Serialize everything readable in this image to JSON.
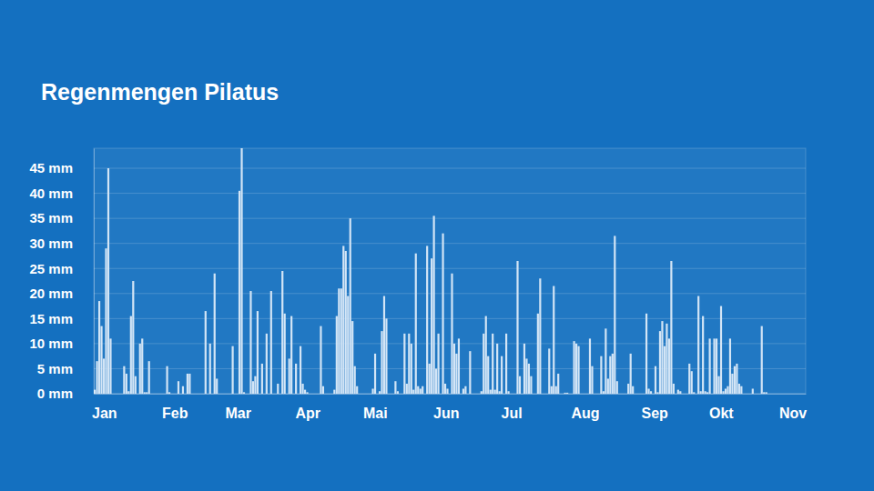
{
  "chart_data": {
    "type": "bar",
    "title": "Regenmengen Pilatus",
    "color": "#d3e5f6",
    "grid": true,
    "ylim": [
      0,
      49
    ],
    "yticks": [
      {
        "value": 0,
        "label": "0 mm"
      },
      {
        "value": 5,
        "label": "5 mm"
      },
      {
        "value": 10,
        "label": "10 mm"
      },
      {
        "value": 15,
        "label": "15 mm"
      },
      {
        "value": 20,
        "label": "20 mm"
      },
      {
        "value": 25,
        "label": "25 mm"
      },
      {
        "value": 30,
        "label": "30 mm"
      },
      {
        "value": 35,
        "label": "35 mm"
      },
      {
        "value": 40,
        "label": "40 mm"
      },
      {
        "value": 45,
        "label": "45 mm"
      }
    ],
    "categories": [
      "Jan",
      null,
      null,
      null,
      null,
      null,
      null,
      null,
      null,
      null,
      null,
      null,
      null,
      null,
      null,
      null,
      null,
      null,
      null,
      null,
      null,
      null,
      null,
      null,
      null,
      null,
      null,
      null,
      null,
      null,
      null,
      "Feb",
      null,
      null,
      null,
      null,
      null,
      null,
      null,
      null,
      null,
      null,
      null,
      null,
      null,
      null,
      null,
      null,
      null,
      null,
      null,
      null,
      null,
      null,
      null,
      null,
      null,
      null,
      null,
      "Mar",
      null,
      null,
      null,
      null,
      null,
      null,
      null,
      null,
      null,
      null,
      null,
      null,
      null,
      null,
      null,
      null,
      null,
      null,
      null,
      null,
      null,
      null,
      null,
      null,
      null,
      null,
      null,
      null,
      null,
      null,
      "Apr",
      null,
      null,
      null,
      null,
      null,
      null,
      null,
      null,
      null,
      null,
      null,
      null,
      null,
      null,
      null,
      null,
      null,
      null,
      null,
      null,
      null,
      null,
      null,
      null,
      null,
      null,
      null,
      null,
      null,
      "Mai",
      null,
      null,
      null,
      null,
      null,
      null,
      null,
      null,
      null,
      null,
      null,
      null,
      null,
      null,
      null,
      null,
      null,
      null,
      null,
      null,
      null,
      null,
      null,
      null,
      null,
      null,
      null,
      null,
      null,
      null,
      "Jun",
      null,
      null,
      null,
      null,
      null,
      null,
      null,
      null,
      null,
      null,
      null,
      null,
      null,
      null,
      null,
      null,
      null,
      null,
      null,
      null,
      null,
      null,
      null,
      null,
      null,
      null,
      null,
      null,
      null,
      "Jul",
      null,
      null,
      null,
      null,
      null,
      null,
      null,
      null,
      null,
      null,
      null,
      null,
      null,
      null,
      null,
      null,
      null,
      null,
      null,
      null,
      null,
      null,
      null,
      null,
      null,
      null,
      null,
      null,
      null,
      null,
      "Aug",
      null,
      null,
      null,
      null,
      null,
      null,
      null,
      null,
      null,
      null,
      null,
      null,
      null,
      null,
      null,
      null,
      null,
      null,
      null,
      null,
      null,
      null,
      null,
      null,
      null,
      null,
      null,
      null,
      null,
      null,
      "Sep",
      null,
      null,
      null,
      null,
      null,
      null,
      null,
      null,
      null,
      null,
      null,
      null,
      null,
      null,
      null,
      null,
      null,
      null,
      null,
      null,
      null,
      null,
      null,
      null,
      null,
      null,
      null,
      null,
      null,
      "Okt",
      null,
      null,
      null,
      null,
      null,
      null,
      null,
      null,
      null,
      null,
      null,
      null,
      null,
      null,
      null,
      null,
      null,
      null,
      null,
      null,
      null,
      null,
      null,
      null,
      null,
      null,
      null,
      null,
      null,
      null,
      "Nov",
      null,
      null,
      null,
      null,
      null,
      null,
      null,
      null,
      null,
      null
    ],
    "values": [
      0.8,
      6.5,
      18.5,
      13.5,
      7,
      29,
      45,
      11,
      0,
      0,
      0,
      0,
      0,
      5.5,
      4,
      0.5,
      15.5,
      22.5,
      3.5,
      0,
      10,
      11,
      0.3,
      0.3,
      6.5,
      0,
      0,
      0,
      0,
      0,
      0,
      0,
      5.5,
      0.3,
      0,
      0,
      0,
      2.5,
      0,
      1.5,
      0,
      4,
      4,
      0,
      0,
      0,
      0,
      0,
      0,
      16.5,
      0,
      10,
      0,
      24,
      3,
      0,
      0,
      0,
      0,
      0,
      0,
      9.5,
      0,
      0,
      40.5,
      49,
      0.3,
      0,
      0,
      20.5,
      2.5,
      3.5,
      16.5,
      0,
      6,
      0,
      12,
      0,
      20.5,
      0,
      0,
      2,
      0,
      24.5,
      16,
      0,
      7,
      15.5,
      0,
      6,
      0,
      9.5,
      2,
      0.8,
      0.3,
      0,
      0,
      0,
      0,
      0,
      13.5,
      1.5,
      0,
      0,
      0,
      0,
      0.8,
      15.5,
      21,
      21,
      29.5,
      28.5,
      19.5,
      35,
      14.5,
      5.5,
      1.5,
      0,
      0,
      0,
      0,
      0,
      0,
      1,
      8,
      0,
      0.5,
      12.5,
      19.5,
      15,
      0,
      0,
      0,
      2.5,
      0.5,
      0,
      0,
      12,
      2,
      12,
      10,
      0.8,
      28,
      1.5,
      1,
      1.5,
      0,
      29.5,
      6,
      27,
      35.5,
      5,
      12,
      0,
      32,
      2,
      1,
      0,
      24,
      10,
      8,
      11,
      0,
      1,
      1.5,
      0,
      8.5,
      0,
      0,
      0,
      0,
      0.5,
      12,
      15.5,
      7.5,
      0.8,
      12,
      0.8,
      10,
      0.5,
      7.5,
      0,
      12,
      0.5,
      0,
      0,
      0,
      26.5,
      3.5,
      0,
      10,
      7,
      6,
      3.5,
      0,
      0,
      16,
      23,
      0,
      0,
      0,
      9,
      1.5,
      21.5,
      1.5,
      4,
      0,
      0,
      0.2,
      0.2,
      0,
      0,
      10.5,
      10,
      9.5,
      0,
      0,
      0,
      0,
      11,
      5.5,
      0,
      0,
      0,
      7.5,
      0.5,
      13,
      3,
      7.5,
      8,
      31.5,
      2.5,
      0,
      0,
      0,
      0,
      2,
      8,
      1.5,
      0,
      0,
      0,
      0,
      0,
      16,
      1,
      0.5,
      0,
      5.5,
      0.3,
      12.5,
      14.5,
      9.5,
      14,
      11,
      26.5,
      2,
      0,
      0.8,
      0.5,
      0,
      0,
      0,
      6,
      4.5,
      0.3,
      0,
      19.5,
      0.5,
      15.5,
      0.5,
      0.3,
      11,
      0,
      11,
      11,
      3.5,
      17.5,
      0.5,
      1,
      1.5,
      11,
      4,
      5.5,
      6,
      2,
      1.5,
      0,
      0,
      0,
      0,
      1,
      0,
      0,
      0,
      13.5,
      0.3,
      0.3,
      0,
      0,
      0,
      0,
      0,
      0,
      null,
      null,
      null,
      null,
      null,
      null,
      null,
      null,
      null,
      null,
      null
    ]
  }
}
